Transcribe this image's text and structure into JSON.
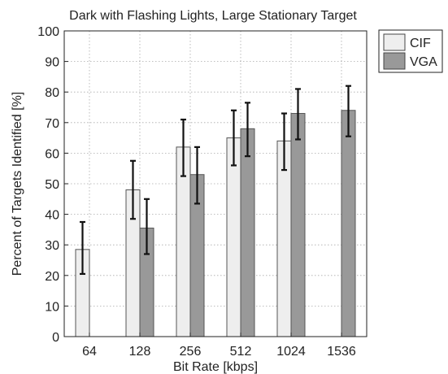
{
  "chart_data": {
    "type": "bar",
    "title": "Dark with Flashing Lights, Large Stationary Target",
    "xlabel": "Bit Rate [kbps]",
    "ylabel": "Percent of Targets Identified [%]",
    "categories": [
      "64",
      "128",
      "256",
      "512",
      "1024",
      "1536"
    ],
    "ylim": [
      0,
      100
    ],
    "yticks": [
      0,
      10,
      20,
      30,
      40,
      50,
      60,
      70,
      80,
      90,
      100
    ],
    "grid": true,
    "legend_position": "outside-top-right",
    "series": [
      {
        "name": "CIF",
        "color": "#eeeeee",
        "values": [
          28.5,
          48,
          62,
          65,
          64,
          null
        ],
        "error_low": [
          20.5,
          38.5,
          52.5,
          56,
          54.5,
          null
        ],
        "error_high": [
          37.5,
          57.5,
          71,
          74,
          73,
          null
        ]
      },
      {
        "name": "VGA",
        "color": "#999999",
        "values": [
          null,
          35.5,
          53,
          68,
          73,
          74
        ],
        "error_low": [
          null,
          27,
          43.5,
          59,
          64.5,
          65.5
        ],
        "error_high": [
          null,
          45,
          62,
          76.5,
          81,
          82
        ]
      }
    ]
  }
}
